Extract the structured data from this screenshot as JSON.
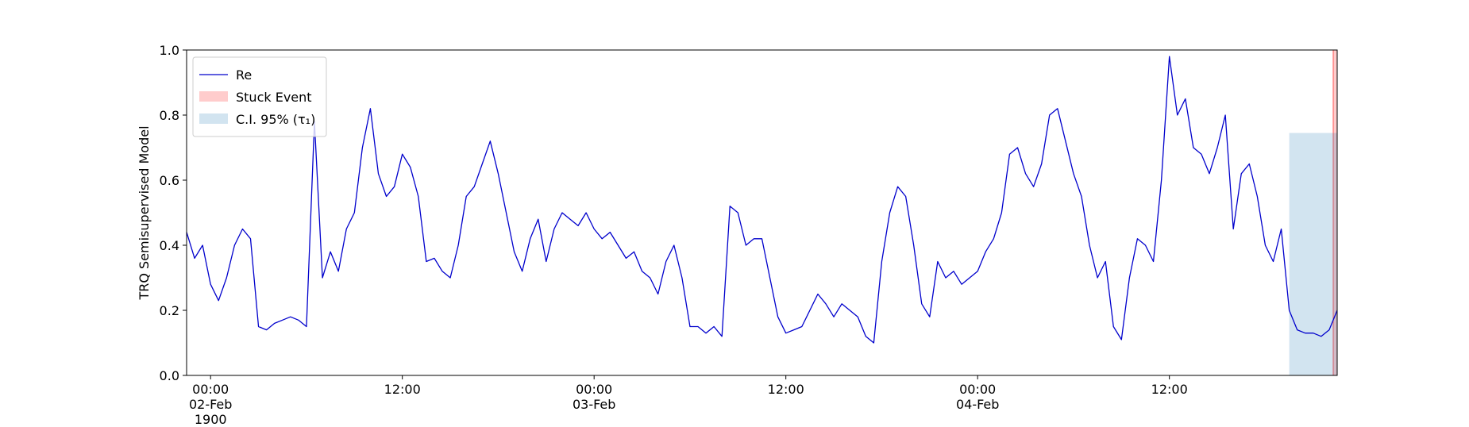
{
  "chart_data": {
    "type": "line",
    "ylabel": "TRQ Semisupervised Model",
    "x": [
      "1900-02-01T22:30",
      "1900-02-01T23:00",
      "1900-02-01T23:30",
      "1900-02-02T00:00",
      "1900-02-02T00:30",
      "1900-02-02T01:00",
      "1900-02-02T01:30",
      "1900-02-02T02:00",
      "1900-02-02T02:30",
      "1900-02-02T03:00",
      "1900-02-02T03:30",
      "1900-02-02T04:00",
      "1900-02-02T04:30",
      "1900-02-02T05:00",
      "1900-02-02T05:30",
      "1900-02-02T06:00",
      "1900-02-02T06:30",
      "1900-02-02T07:00",
      "1900-02-02T07:30",
      "1900-02-02T08:00",
      "1900-02-02T08:30",
      "1900-02-02T09:00",
      "1900-02-02T09:30",
      "1900-02-02T10:00",
      "1900-02-02T10:30",
      "1900-02-02T11:00",
      "1900-02-02T11:30",
      "1900-02-02T12:00",
      "1900-02-02T12:30",
      "1900-02-02T13:00",
      "1900-02-02T13:30",
      "1900-02-02T14:00",
      "1900-02-02T14:30",
      "1900-02-02T15:00",
      "1900-02-02T15:30",
      "1900-02-02T16:00",
      "1900-02-02T16:30",
      "1900-02-02T17:00",
      "1900-02-02T17:30",
      "1900-02-02T18:00",
      "1900-02-02T18:30",
      "1900-02-02T19:00",
      "1900-02-02T19:30",
      "1900-02-02T20:00",
      "1900-02-02T20:30",
      "1900-02-02T21:00",
      "1900-02-02T21:30",
      "1900-02-02T22:00",
      "1900-02-02T22:30",
      "1900-02-02T23:00",
      "1900-02-02T23:30",
      "1900-02-03T00:00",
      "1900-02-03T00:30",
      "1900-02-03T01:00",
      "1900-02-03T01:30",
      "1900-02-03T02:00",
      "1900-02-03T02:30",
      "1900-02-03T03:00",
      "1900-02-03T03:30",
      "1900-02-03T04:00",
      "1900-02-03T04:30",
      "1900-02-03T05:00",
      "1900-02-03T05:30",
      "1900-02-03T06:00",
      "1900-02-03T06:30",
      "1900-02-03T07:00",
      "1900-02-03T07:30",
      "1900-02-03T08:00",
      "1900-02-03T08:30",
      "1900-02-03T09:00",
      "1900-02-03T09:30",
      "1900-02-03T10:00",
      "1900-02-03T10:30",
      "1900-02-03T11:00",
      "1900-02-03T11:30",
      "1900-02-03T12:00",
      "1900-02-03T12:30",
      "1900-02-03T13:00",
      "1900-02-03T13:30",
      "1900-02-03T14:00",
      "1900-02-03T14:30",
      "1900-02-03T15:00",
      "1900-02-03T15:30",
      "1900-02-03T16:00",
      "1900-02-03T16:30",
      "1900-02-03T17:00",
      "1900-02-03T17:30",
      "1900-02-03T18:00",
      "1900-02-03T18:30",
      "1900-02-03T19:00",
      "1900-02-03T19:30",
      "1900-02-03T20:00",
      "1900-02-03T20:30",
      "1900-02-03T21:00",
      "1900-02-03T21:30",
      "1900-02-03T22:00",
      "1900-02-03T22:30",
      "1900-02-03T23:00",
      "1900-02-03T23:30",
      "1900-02-04T00:00",
      "1900-02-04T00:30",
      "1900-02-04T01:00",
      "1900-02-04T01:30",
      "1900-02-04T02:00",
      "1900-02-04T02:30",
      "1900-02-04T03:00",
      "1900-02-04T03:30",
      "1900-02-04T04:00",
      "1900-02-04T04:30",
      "1900-02-04T05:00",
      "1900-02-04T05:30",
      "1900-02-04T06:00",
      "1900-02-04T06:30",
      "1900-02-04T07:00",
      "1900-02-04T07:30",
      "1900-02-04T08:00",
      "1900-02-04T08:30",
      "1900-02-04T09:00",
      "1900-02-04T09:30",
      "1900-02-04T10:00",
      "1900-02-04T10:30",
      "1900-02-04T11:00",
      "1900-02-04T11:30",
      "1900-02-04T12:00",
      "1900-02-04T12:30",
      "1900-02-04T13:00",
      "1900-02-04T13:30",
      "1900-02-04T14:00",
      "1900-02-04T14:30",
      "1900-02-04T15:00",
      "1900-02-04T15:30",
      "1900-02-04T16:00",
      "1900-02-04T16:30",
      "1900-02-04T17:00",
      "1900-02-04T17:30",
      "1900-02-04T18:00",
      "1900-02-04T18:30",
      "1900-02-04T19:00",
      "1900-02-04T19:30",
      "1900-02-04T20:00",
      "1900-02-04T20:30",
      "1900-02-04T21:00",
      "1900-02-04T21:30",
      "1900-02-04T22:00",
      "1900-02-04T22:30"
    ],
    "series": [
      {
        "name": "Re",
        "color": "#0000cc",
        "values": [
          0.44,
          0.36,
          0.4,
          0.28,
          0.23,
          0.3,
          0.4,
          0.45,
          0.42,
          0.15,
          0.14,
          0.16,
          0.17,
          0.18,
          0.17,
          0.15,
          0.78,
          0.3,
          0.38,
          0.32,
          0.45,
          0.5,
          0.7,
          0.82,
          0.62,
          0.55,
          0.58,
          0.68,
          0.64,
          0.55,
          0.35,
          0.36,
          0.32,
          0.3,
          0.4,
          0.55,
          0.58,
          0.65,
          0.72,
          0.62,
          0.5,
          0.38,
          0.32,
          0.42,
          0.48,
          0.35,
          0.45,
          0.5,
          0.48,
          0.46,
          0.5,
          0.45,
          0.42,
          0.44,
          0.4,
          0.36,
          0.38,
          0.32,
          0.3,
          0.25,
          0.35,
          0.4,
          0.3,
          0.15,
          0.15,
          0.13,
          0.15,
          0.12,
          0.52,
          0.5,
          0.4,
          0.42,
          0.42,
          0.3,
          0.18,
          0.13,
          0.14,
          0.15,
          0.2,
          0.25,
          0.22,
          0.18,
          0.22,
          0.2,
          0.18,
          0.12,
          0.1,
          0.35,
          0.5,
          0.58,
          0.55,
          0.4,
          0.22,
          0.18,
          0.35,
          0.3,
          0.32,
          0.28,
          0.3,
          0.32,
          0.38,
          0.42,
          0.5,
          0.68,
          0.7,
          0.62,
          0.58,
          0.65,
          0.8,
          0.82,
          0.72,
          0.62,
          0.55,
          0.4,
          0.3,
          0.35,
          0.15,
          0.11,
          0.3,
          0.42,
          0.4,
          0.35,
          0.6,
          0.98,
          0.8,
          0.85,
          0.7,
          0.68,
          0.62,
          0.7,
          0.8,
          0.45,
          0.62,
          0.65,
          0.55,
          0.4,
          0.35,
          0.45,
          0.2,
          0.14,
          0.13,
          0.13,
          0.12,
          0.14,
          0.2
        ]
      }
    ],
    "spans": [
      {
        "name": "Stuck Event",
        "color": "#ff0000",
        "x0": "1900-02-04T22:15",
        "x1": "1900-02-04T22:30",
        "y0": 0,
        "y1": 1
      },
      {
        "name": "C.I. 95% (τ₁)",
        "color": "#1f77b4",
        "x0": "1900-02-04T19:30",
        "x1": "1900-02-04T22:30",
        "y0": 0,
        "y1": 0.745
      }
    ],
    "xlim": [
      "1900-02-01T22:30",
      "1900-02-04T22:30"
    ],
    "xticks": [
      {
        "value": "1900-02-02T00:00",
        "label": "00:00\n02-Feb\n1900"
      },
      {
        "value": "1900-02-02T12:00",
        "label": "12:00"
      },
      {
        "value": "1900-02-03T00:00",
        "label": "00:00\n03-Feb"
      },
      {
        "value": "1900-02-03T12:00",
        "label": "12:00"
      },
      {
        "value": "1900-02-04T00:00",
        "label": "00:00\n04-Feb"
      },
      {
        "value": "1900-02-04T12:00",
        "label": "12:00"
      }
    ],
    "ylim": [
      0,
      1
    ],
    "yticks": [
      {
        "value": 0,
        "label": "0.0"
      },
      {
        "value": 0.2,
        "label": "0.2"
      },
      {
        "value": 0.4,
        "label": "0.4"
      },
      {
        "value": 0.6,
        "label": "0.6"
      },
      {
        "value": 0.8,
        "label": "0.8"
      },
      {
        "value": 1,
        "label": "1.0"
      }
    ],
    "legend": "upper left"
  }
}
